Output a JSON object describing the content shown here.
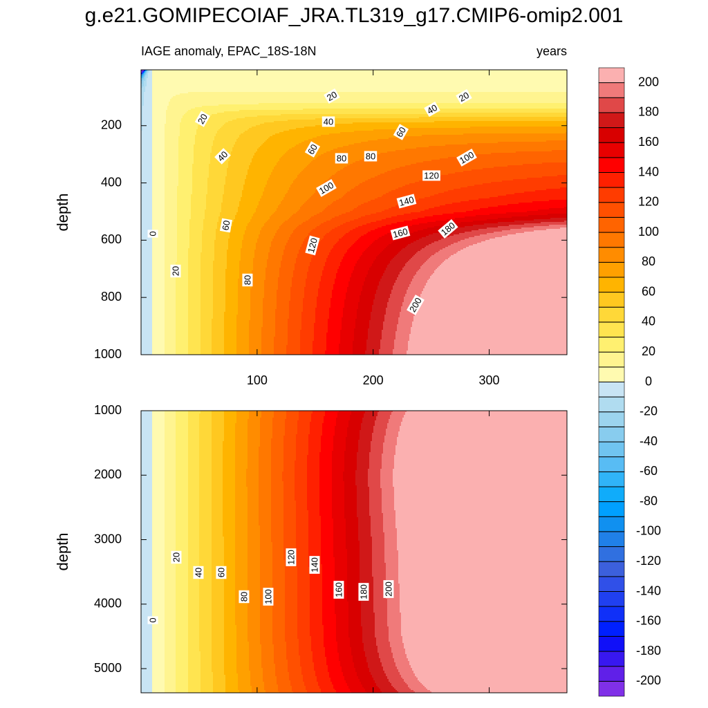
{
  "title": "g.e21.GOMIPECOIAF_JRA.TL319_g17.CMIP6-omip2.001",
  "chart_data": [
    {
      "type": "contour",
      "subtitle": "IAGE anomaly, EPAC_18S-18N",
      "units": "years",
      "y_label": "depth",
      "xlim": [
        0,
        367
      ],
      "xticks": [
        100,
        200,
        300
      ],
      "show_x_tick_labels": true,
      "ylim": [
        5,
        1000
      ],
      "yticks": [
        200,
        400,
        600,
        800,
        1000
      ],
      "y_reversed": true,
      "contour_labels": [
        20,
        20,
        20,
        40,
        40,
        60,
        40,
        60,
        80,
        80,
        100,
        120,
        100,
        140,
        160,
        180,
        60,
        0,
        120,
        20,
        80,
        200
      ]
    },
    {
      "type": "contour",
      "y_label": "depth",
      "xlim": [
        0,
        367
      ],
      "xticks": [
        100,
        200,
        300
      ],
      "show_x_tick_labels": false,
      "ylim": [
        1000,
        5375
      ],
      "yticks": [
        1000,
        2000,
        3000,
        4000,
        5000
      ],
      "y_reversed": true,
      "contour_labels": [
        20,
        40,
        60,
        80,
        100,
        120,
        140,
        160,
        180,
        200,
        0
      ]
    }
  ],
  "colorbar": {
    "levels": [
      -200,
      -190,
      -180,
      -170,
      -160,
      -150,
      -140,
      -130,
      -120,
      -110,
      -100,
      -90,
      -80,
      -70,
      -60,
      -50,
      -40,
      -30,
      -20,
      -10,
      0,
      10,
      20,
      30,
      40,
      50,
      60,
      70,
      80,
      90,
      100,
      110,
      120,
      130,
      140,
      150,
      160,
      170,
      180,
      190,
      200
    ],
    "colors": [
      "#8030e8",
      "#6020e8",
      "#3818f0",
      "#1010f8",
      "#0020ff",
      "#1030f8",
      "#2040f0",
      "#3050e8",
      "#3c60dc",
      "#3070e0",
      "#2080e8",
      "#1090f0",
      "#00a0ff",
      "#10acfa",
      "#30b4f8",
      "#58bcf4",
      "#70c4f0",
      "#88ccee",
      "#9cd4ee",
      "#b0dcf0",
      "#c8e4f4",
      "#fffab0",
      "#fff490",
      "#fff070",
      "#ffe450",
      "#ffd838",
      "#ffc820",
      "#ffb400",
      "#ffa000",
      "#ff8c00",
      "#ff7800",
      "#ff6400",
      "#ff5000",
      "#ff3c00",
      "#ff2000",
      "#ff0000",
      "#e80000",
      "#d80000",
      "#d01818",
      "#e04848",
      "#f07a7a",
      "#fbb0b0"
    ],
    "ticks": [
      -200,
      -180,
      -160,
      -140,
      -120,
      -100,
      -80,
      -60,
      -40,
      -20,
      0,
      20,
      40,
      60,
      80,
      100,
      120,
      140,
      160,
      180,
      200
    ]
  }
}
